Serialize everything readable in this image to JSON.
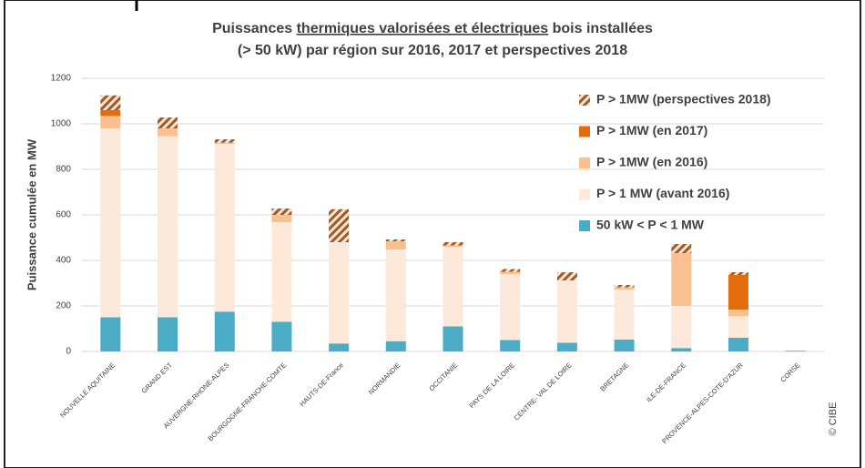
{
  "chart_data": {
    "type": "stacked_bar",
    "title": [
      "Puissances ",
      "thermiques valorisées et électriques",
      " bois installées"
    ],
    "subtitle": "(> 50 kW) par région sur 2016, 2017 et perspectives 2018",
    "y_label": "Puissance cumulée en MW",
    "credit": "© CIBE",
    "categories": [
      "NOUVELLE AQUITAINE",
      "GRAND EST",
      "AUVERGNE-RHONE-ALPES",
      "BOURGOGNE-FRANCHE-COMTE",
      "HAUTS-DE-France",
      "NORMANDIE",
      "OCCITANIE",
      "PAYS DE LA LOIRE",
      "CENTRE- VAL DE LOIRE",
      "BRETAGNE",
      "ILE-DE-FRANCE",
      "PROVENCE-ALPES-COTE-D'AZUR",
      "CORSE"
    ],
    "series": [
      {
        "name": "50 kW < P < 1 MW",
        "color": "#4bacc6",
        "values": [
          150,
          150,
          175,
          130,
          35,
          45,
          110,
          50,
          38,
          52,
          15,
          60,
          3
        ]
      },
      {
        "name": "P > 1 MW (avant 2016)",
        "color": "#fde9d9",
        "values": [
          830,
          795,
          737,
          438,
          445,
          403,
          350,
          290,
          274,
          220,
          185,
          96,
          0
        ]
      },
      {
        "name": "P > 1MW (en 2016)",
        "color": "#fac090",
        "values": [
          55,
          35,
          5,
          32,
          0,
          36,
          6,
          10,
          0,
          10,
          232,
          28,
          0
        ]
      },
      {
        "name": "P > 1MW (en 2017)",
        "color": "#e46c0a",
        "values": [
          25,
          0,
          0,
          0,
          0,
          0,
          0,
          0,
          0,
          0,
          0,
          152,
          0
        ]
      },
      {
        "name": "P > 1MW (perspectives 2018)",
        "color": "#9c5b2a",
        "hatch": true,
        "values": [
          65,
          48,
          15,
          28,
          145,
          8,
          14,
          12,
          36,
          10,
          40,
          12,
          0
        ]
      }
    ],
    "ylim": [
      0,
      1200
    ],
    "yticks": [
      0,
      200,
      400,
      600,
      800,
      1000,
      1200
    ],
    "grid": true,
    "legend": "top-right"
  }
}
